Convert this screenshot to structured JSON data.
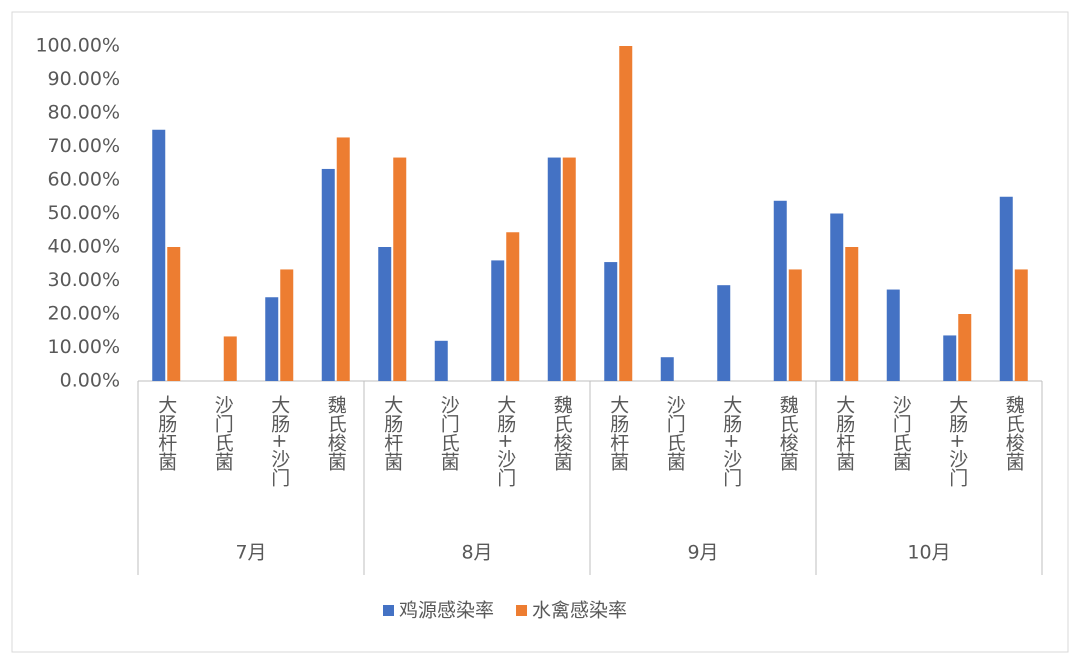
{
  "chart_data": {
    "type": "bar",
    "groups": [
      {
        "name": "7月",
        "categories": [
          "大肠杆菌",
          "沙门氏菌",
          "大肠+沙门",
          "魏氏梭菌"
        ]
      },
      {
        "name": "8月",
        "categories": [
          "大肠杆菌",
          "沙门氏菌",
          "大肠+沙门",
          "魏氏梭菌"
        ]
      },
      {
        "name": "9月",
        "categories": [
          "大肠杆菌",
          "沙门氏菌",
          "大肠+沙门",
          "魏氏梭菌"
        ]
      },
      {
        "name": "10月",
        "categories": [
          "大肠杆菌",
          "沙门氏菌",
          "大肠+沙门",
          "魏氏梭菌"
        ]
      }
    ],
    "series": [
      {
        "name": "鸡源感染率",
        "color": "#4472c4",
        "values": [
          75,
          0,
          25,
          63.3,
          40,
          12,
          36,
          66.7,
          35.5,
          7.1,
          28.6,
          53.8,
          50,
          27.3,
          13.6,
          55
        ]
      },
      {
        "name": "水禽感染率",
        "color": "#ed7d31",
        "values": [
          40,
          13.3,
          33.3,
          72.7,
          66.7,
          0,
          44.4,
          66.7,
          100,
          0,
          0,
          33.3,
          40,
          0,
          20,
          33.3
        ]
      }
    ],
    "ylim": [
      0,
      100
    ],
    "yticks": [
      {
        "value": 0,
        "label": "0.00%"
      },
      {
        "value": 10,
        "label": "10.00%"
      },
      {
        "value": 20,
        "label": "20.00%"
      },
      {
        "value": 30,
        "label": "30.00%"
      },
      {
        "value": 40,
        "label": "40.00%"
      },
      {
        "value": 50,
        "label": "50.00%"
      },
      {
        "value": 60,
        "label": "60.00%"
      },
      {
        "value": 70,
        "label": "70.00%"
      },
      {
        "value": 80,
        "label": "80.00%"
      },
      {
        "value": 90,
        "label": "90.00%"
      },
      {
        "value": 100,
        "label": "100.00%"
      }
    ],
    "legend": "bottom"
  }
}
